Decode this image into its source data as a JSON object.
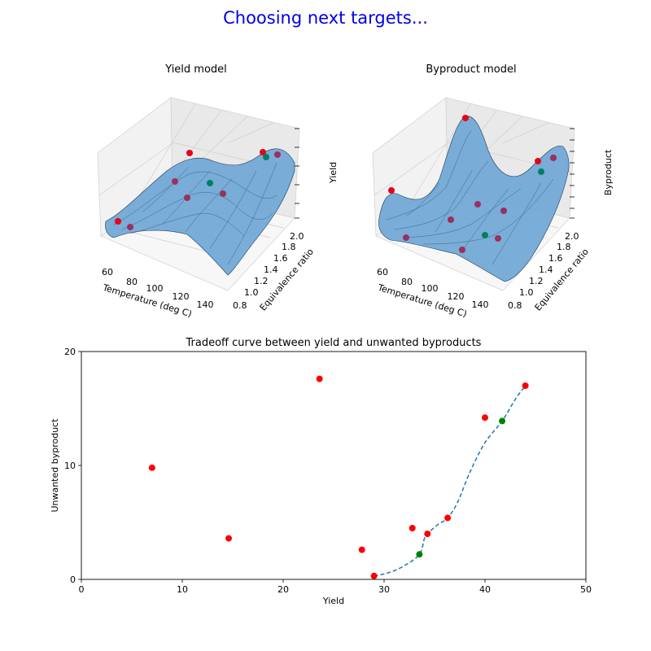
{
  "suptitle": "Choosing next targets...",
  "colors": {
    "suptitle": "#0000e6",
    "surface_fill": "#6fa6d4",
    "surface_edge": "#1a3b5a",
    "pane": "#f2f2f2",
    "red_points": "#ff0000",
    "green_points": "#008000",
    "curve": "#1f77b4"
  },
  "chart_data": [
    {
      "type": "surface3d",
      "title": "Yield model",
      "xlabel": "Temperature (deg C)",
      "ylabel": "Equivalence ratio",
      "zlabel": "Yield",
      "xticks": [
        "60",
        "80",
        "100",
        "120",
        "140"
      ],
      "yticks": [
        "0.8",
        "1.0",
        "1.2",
        "1.4",
        "1.6",
        "1.8",
        "2.0"
      ],
      "grid": true
    },
    {
      "type": "surface3d",
      "title": "Byproduct model",
      "xlabel": "Temperature (deg C)",
      "ylabel": "Equivalence ratio",
      "zlabel": "Byproduct",
      "xticks": [
        "60",
        "80",
        "100",
        "120",
        "140"
      ],
      "yticks": [
        "0.8",
        "1.0",
        "1.2",
        "1.4",
        "1.6",
        "1.8",
        "2.0"
      ],
      "grid": true
    },
    {
      "type": "scatter",
      "title": "Tradeoff curve between yield and unwanted byproducts",
      "xlabel": "Yield",
      "ylabel": "Unwanted byproduct",
      "xlim": [
        0,
        50
      ],
      "ylim": [
        0,
        20
      ],
      "xticks": [
        "0",
        "10",
        "20",
        "30",
        "40",
        "50"
      ],
      "yticks": [
        "0",
        "10",
        "20"
      ],
      "grid": false,
      "red_points": [
        {
          "x": 7.0,
          "y": 9.8
        },
        {
          "x": 14.6,
          "y": 3.6
        },
        {
          "x": 23.6,
          "y": 17.6
        },
        {
          "x": 27.8,
          "y": 2.6
        },
        {
          "x": 29.0,
          "y": 0.3
        },
        {
          "x": 32.8,
          "y": 4.5
        },
        {
          "x": 34.3,
          "y": 4.0
        },
        {
          "x": 36.3,
          "y": 5.4
        },
        {
          "x": 40.0,
          "y": 14.2
        },
        {
          "x": 44.0,
          "y": 17.0
        }
      ],
      "green_points": [
        {
          "x": 33.5,
          "y": 2.2
        },
        {
          "x": 41.7,
          "y": 13.9
        }
      ],
      "curve": [
        {
          "x": 29.0,
          "y": 0.3
        },
        {
          "x": 30.5,
          "y": 0.6
        },
        {
          "x": 32.0,
          "y": 1.2
        },
        {
          "x": 33.5,
          "y": 2.2
        },
        {
          "x": 34.0,
          "y": 3.6
        },
        {
          "x": 34.3,
          "y": 4.0
        },
        {
          "x": 35.3,
          "y": 4.8
        },
        {
          "x": 36.3,
          "y": 5.4
        },
        {
          "x": 37.3,
          "y": 6.8
        },
        {
          "x": 38.5,
          "y": 9.4
        },
        {
          "x": 40.0,
          "y": 12.0
        },
        {
          "x": 41.7,
          "y": 13.9
        },
        {
          "x": 43.0,
          "y": 15.8
        },
        {
          "x": 44.0,
          "y": 17.0
        }
      ]
    }
  ]
}
